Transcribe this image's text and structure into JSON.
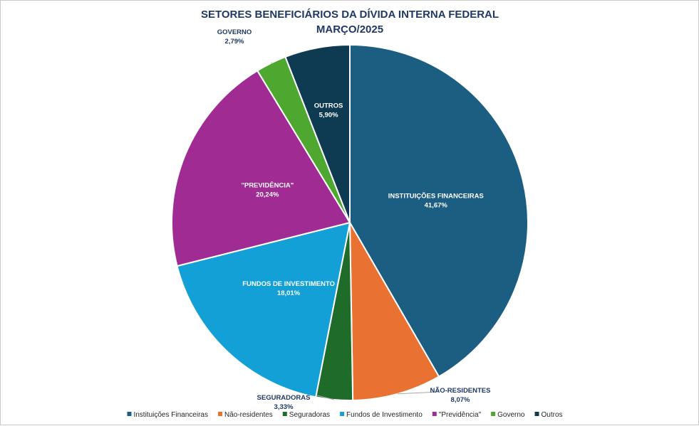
{
  "chart_data": {
    "type": "pie",
    "title": "SETORES BENEFICIÁRIOS DA DÍVIDA INTERNA FEDERAL",
    "subtitle": "MARÇO/2025",
    "slices": [
      {
        "name": "Instituições Financeiras",
        "label": "INSTITUIÇÕES FINANCEIRAS",
        "value": 41.67,
        "value_text": "41,67%",
        "color": "#1b5e82",
        "label_color": "#ffffff"
      },
      {
        "name": "Não-residentes",
        "label": "NÃO-RESIDENTES",
        "value": 8.07,
        "value_text": "8,07%",
        "color": "#e97132",
        "label_color": "#1f3864"
      },
      {
        "name": "Seguradoras",
        "label": "SEGURADORAS",
        "value": 3.33,
        "value_text": "3,33%",
        "color": "#1e6b2a",
        "label_color": "#1f3864"
      },
      {
        "name": "Fundos de Investimento",
        "label": "FUNDOS DE INVESTIMENTO",
        "value": 18.01,
        "value_text": "18,01%",
        "color": "#12a0d7",
        "label_color": "#ffffff"
      },
      {
        "name": "\"Previdência\"",
        "label": "\"PREVIDÊNCIA\"",
        "value": 20.24,
        "value_text": "20,24%",
        "color": "#a02b93",
        "label_color": "#ffffff"
      },
      {
        "name": "Governo",
        "label": "GOVERNO",
        "value": 2.79,
        "value_text": "2,79%",
        "color": "#4ea72e",
        "label_color": "#1f3864"
      },
      {
        "name": "Outros",
        "label": "OUTROS",
        "value": 5.9,
        "value_text": "5,90%",
        "color": "#0e3a52",
        "label_color": "#ffffff"
      }
    ],
    "legend_position": "bottom"
  }
}
